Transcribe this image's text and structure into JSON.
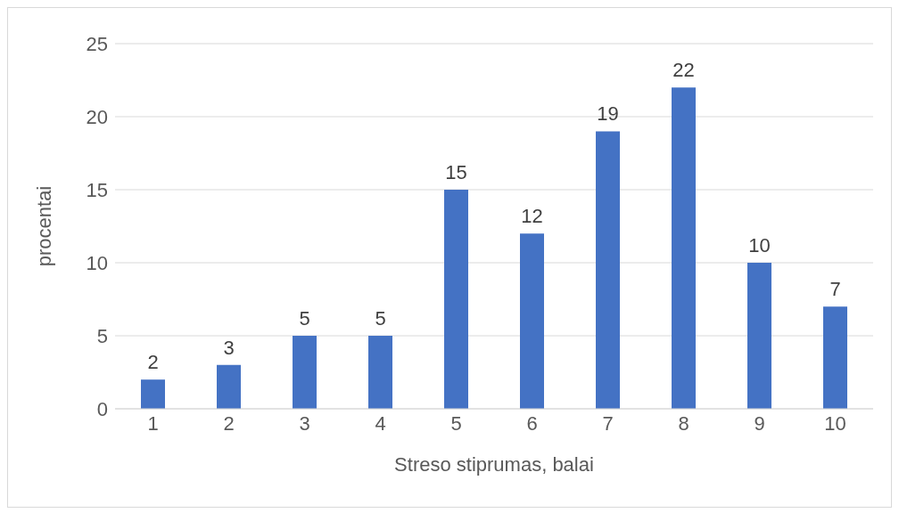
{
  "chart_data": {
    "type": "bar",
    "xlabel": "Streso stiprumas, balai",
    "ylabel": "procentai",
    "categories": [
      "1",
      "2",
      "3",
      "4",
      "5",
      "6",
      "7",
      "8",
      "9",
      "10"
    ],
    "values": [
      2,
      3,
      5,
      5,
      15,
      12,
      19,
      22,
      10,
      7
    ],
    "color": "#4472c4",
    "ylim": [
      0,
      25
    ],
    "yticks": [
      0,
      5,
      10,
      15,
      20,
      25
    ],
    "grid": "y",
    "data_labels": true
  }
}
